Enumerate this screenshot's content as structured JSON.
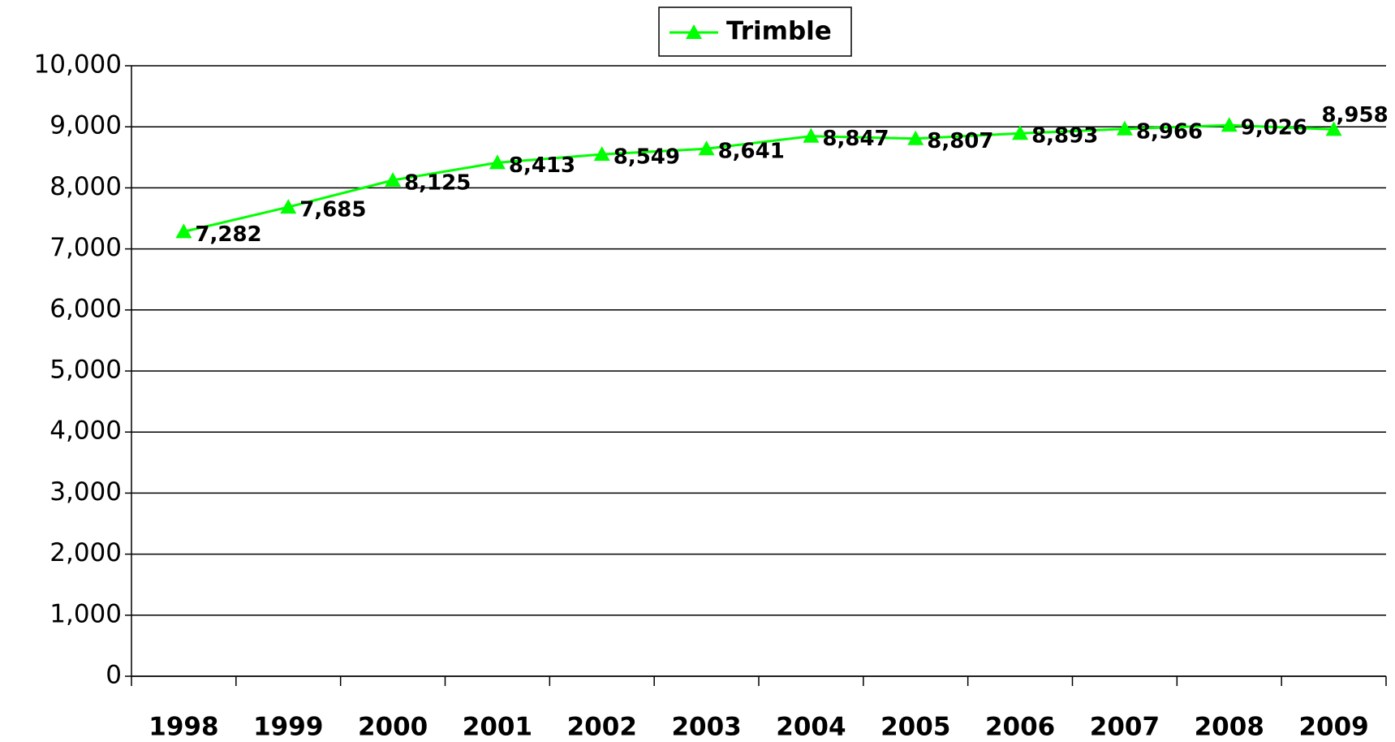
{
  "chart_data": {
    "type": "line",
    "categories": [
      "1998",
      "1999",
      "2000",
      "2001",
      "2002",
      "2003",
      "2004",
      "2005",
      "2006",
      "2007",
      "2008",
      "2009"
    ],
    "series": [
      {
        "name": "Trimble",
        "color": "#00ff00",
        "values": [
          7282,
          7685,
          8125,
          8413,
          8549,
          8641,
          8847,
          8807,
          8893,
          8966,
          9026,
          8958
        ],
        "value_labels": [
          "7,282",
          "7,685",
          "8,125",
          "8,413",
          "8,549",
          "8,641",
          "8,847",
          "8,807",
          "8,893",
          "8,966",
          "9,026",
          "8,958"
        ]
      }
    ],
    "ylim": [
      0,
      10000
    ],
    "yticks": [
      0,
      {
        "value": 1000,
        "label": "1,000"
      },
      {
        "value": 2000,
        "label": "2,000"
      },
      {
        "value": 3000,
        "label": "3,000"
      },
      {
        "value": 4000,
        "label": "4,000"
      },
      {
        "value": 5000,
        "label": "5,000"
      },
      {
        "value": 6000,
        "label": "6,000"
      },
      {
        "value": 7000,
        "label": "7,000"
      },
      {
        "value": 8000,
        "label": "8,000"
      },
      {
        "value": 9000,
        "label": "9,000"
      },
      {
        "value": 10000,
        "label": "10,000"
      }
    ],
    "grid": true,
    "legend": "top"
  }
}
